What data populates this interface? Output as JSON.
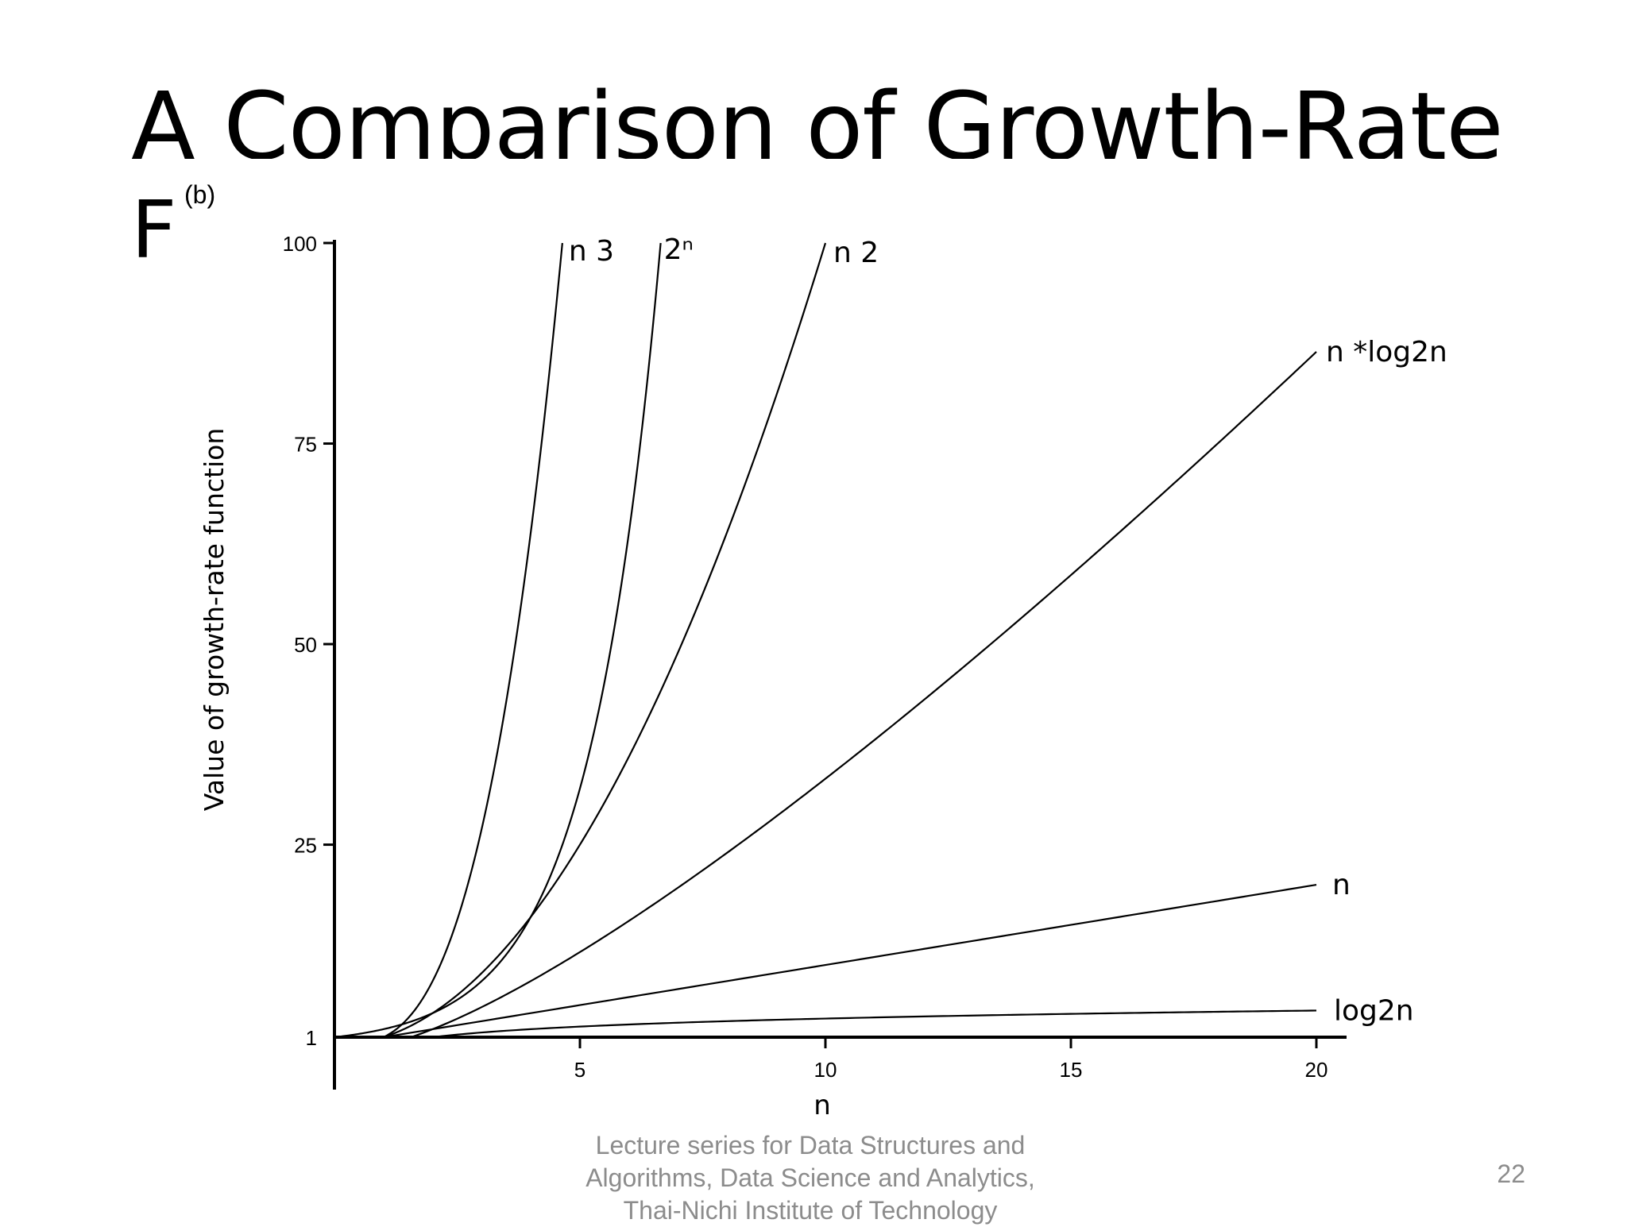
{
  "slide": {
    "title": "A Comparison of Growth-Rate",
    "title_line2": "F",
    "footer": "Lecture series for Data Structures and\nAlgorithms, Data Science and Analytics,\nThai-Nichi Institute of Technology",
    "page_number": "22"
  },
  "chart_data": {
    "type": "line",
    "panel_label": "(b)",
    "xlabel": "n",
    "ylabel": "Value of growth-rate function",
    "xlim": [
      0,
      20.6
    ],
    "ylim": [
      1,
      100
    ],
    "x_ticks": [
      "5",
      "10",
      "15",
      "20"
    ],
    "y_ticks": [
      "1",
      "25",
      "50",
      "75",
      "100"
    ],
    "grid": false,
    "line_color": "#000000",
    "series": [
      {
        "name": "2ⁿ",
        "function": "2^n",
        "x": [
          0,
          1,
          2,
          3,
          4,
          5,
          6,
          6.644
        ],
        "y": [
          1,
          2,
          4,
          8,
          16,
          32,
          64,
          100
        ]
      },
      {
        "name": "n 3",
        "function": "n^3",
        "x": [
          0,
          1,
          2,
          3,
          4,
          4.642
        ],
        "y": [
          0,
          1,
          8,
          27,
          64,
          100
        ]
      },
      {
        "name": "n 2",
        "function": "n^2",
        "x": [
          0,
          2,
          4,
          6,
          8,
          10
        ],
        "y": [
          0,
          4,
          16,
          36,
          64,
          100
        ]
      },
      {
        "name": "n *log2n",
        "function": "n*log2(n)",
        "x": [
          1,
          2,
          4,
          8,
          12,
          16,
          20
        ],
        "y": [
          0,
          2,
          8,
          24,
          43,
          64,
          86
        ]
      },
      {
        "name": "n",
        "function": "n",
        "x": [
          0,
          5,
          10,
          15,
          20
        ],
        "y": [
          0,
          5,
          10,
          15,
          20
        ]
      },
      {
        "name": "log2n",
        "function": "log2(n)",
        "x": [
          1,
          2,
          4,
          8,
          16,
          20
        ],
        "y": [
          0,
          1,
          2,
          3,
          4,
          4.32
        ]
      }
    ]
  }
}
